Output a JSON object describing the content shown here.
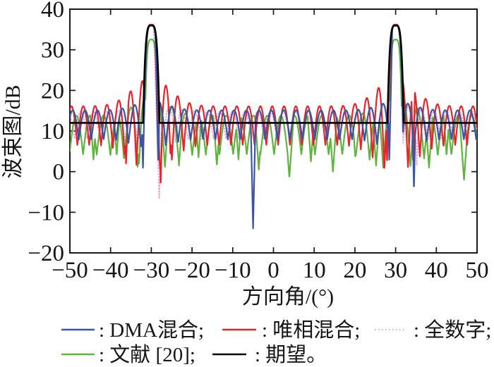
{
  "figure": {
    "background": "#ffffff",
    "axis_color": "#1a1a1a"
  },
  "chart_data": {
    "type": "line",
    "title": "",
    "xlabel": "方向角/(°)",
    "ylabel": "波束图/dB",
    "xlim": [
      -50,
      50
    ],
    "ylim": [
      -20,
      40
    ],
    "grid": false,
    "x_ticks": [
      -50,
      -40,
      -30,
      -20,
      -10,
      0,
      10,
      20,
      30,
      40,
      50
    ],
    "x_tick_labels": [
      "−50",
      "−40",
      "−30",
      "−20",
      "−10",
      "0",
      "10",
      "20",
      "30",
      "40",
      "50"
    ],
    "y_ticks": [
      -20,
      -10,
      0,
      10,
      20,
      30,
      40
    ],
    "y_tick_labels": [
      "−20",
      "−10",
      "0",
      "10",
      "20",
      "30",
      "40"
    ],
    "mask": {
      "name": "期望",
      "color": "#000000",
      "flat_level": 12,
      "beam_centers": [
        -30,
        30
      ],
      "beam_peak": 36,
      "beam_half_width": 2.0
    },
    "series": [
      {
        "key": "quanshuzi",
        "name": "全数字",
        "color": "#f2a0c4",
        "style": "dotted",
        "ripple": {
          "center": 11.4,
          "amp": 3.4,
          "bump": 2.2,
          "bump_sigma": 4.0,
          "period": 3.1,
          "phase": 0.75
        },
        "mainlobe": {
          "peak": 35.7,
          "half_width": 2.0,
          "drop": 40
        },
        "nulls": [
          [
            -28.05,
            -7,
            30
          ],
          [
            35.2,
            1.5,
            30
          ]
        ]
      },
      {
        "key": "wenxian20",
        "name": "文献 [20]",
        "color": "#5fb43e",
        "style": "solid",
        "ripple": {
          "center": 9.0,
          "amp": 4.8,
          "bump": 4.5,
          "bump_sigma": 4.0,
          "period": 3.35,
          "phase": 0.15
        },
        "mainlobe": {
          "peak": 32.5,
          "half_width": 1.85,
          "drop": 40
        },
        "nulls": [
          [
            -44.2,
            3,
            14
          ],
          [
            -38.5,
            4,
            14
          ],
          [
            -33.0,
            2,
            20
          ],
          [
            -23.2,
            1.5,
            14
          ],
          [
            -18.4,
            3.5,
            14
          ],
          [
            -13.9,
            1.5,
            14
          ],
          [
            -8.6,
            3,
            14
          ],
          [
            -3.6,
            0.5,
            14
          ],
          [
            3.9,
            -1.5,
            14
          ],
          [
            9.2,
            2.5,
            14
          ],
          [
            14.6,
            0,
            14
          ],
          [
            20.1,
            3.5,
            14
          ],
          [
            25.2,
            1.5,
            14
          ],
          [
            33.6,
            2,
            20
          ],
          [
            38.2,
            1,
            14
          ],
          [
            42.5,
            4,
            14
          ],
          [
            46.8,
            -2,
            14
          ]
        ]
      },
      {
        "key": "weixiang",
        "name": "唯相混合",
        "color": "#e8232b",
        "style": "solid",
        "ripple": {
          "center": 11.3,
          "amp": 4.8,
          "bump": 7.0,
          "bump_sigma": 4.5,
          "period": 2.9,
          "phase": 1.15
        },
        "mainlobe": {
          "peak": 36.2,
          "half_width": 2.05,
          "drop": 40
        },
        "nulls": [
          [
            -36.2,
            2,
            25
          ],
          [
            -27.7,
            -3.5,
            40
          ],
          [
            -25.3,
            4,
            25
          ],
          [
            27.9,
            2,
            40
          ],
          [
            34.3,
            2,
            40
          ]
        ]
      },
      {
        "key": "dma",
        "name": "DMA混合",
        "color": "#3b54a5",
        "style": "solid",
        "ripple": {
          "center": 11.5,
          "amp": 3.6,
          "bump": 2.2,
          "bump_sigma": 4.0,
          "period": 3.05,
          "phase": 1.0
        },
        "mainlobe": {
          "peak": 36.0,
          "half_width": 2.0,
          "drop": 40
        },
        "nulls": [
          [
            -32.05,
            0.5,
            45
          ],
          [
            -28.3,
            2,
            45
          ],
          [
            -5.0,
            -14,
            45
          ],
          [
            28.45,
            2.5,
            45
          ],
          [
            34.5,
            -4.5,
            45
          ]
        ]
      }
    ],
    "legend": {
      "position": "below",
      "items": [
        {
          "series": "dma",
          "label": ": DMA混合;"
        },
        {
          "series": "weixiang",
          "label": ": 唯相混合;"
        },
        {
          "series": "quanshuzi",
          "label": ": 全数字;"
        },
        {
          "series": "wenxian20",
          "label": ": 文献 [20];"
        },
        {
          "series": "mask",
          "label": ": 期望。"
        }
      ]
    }
  }
}
